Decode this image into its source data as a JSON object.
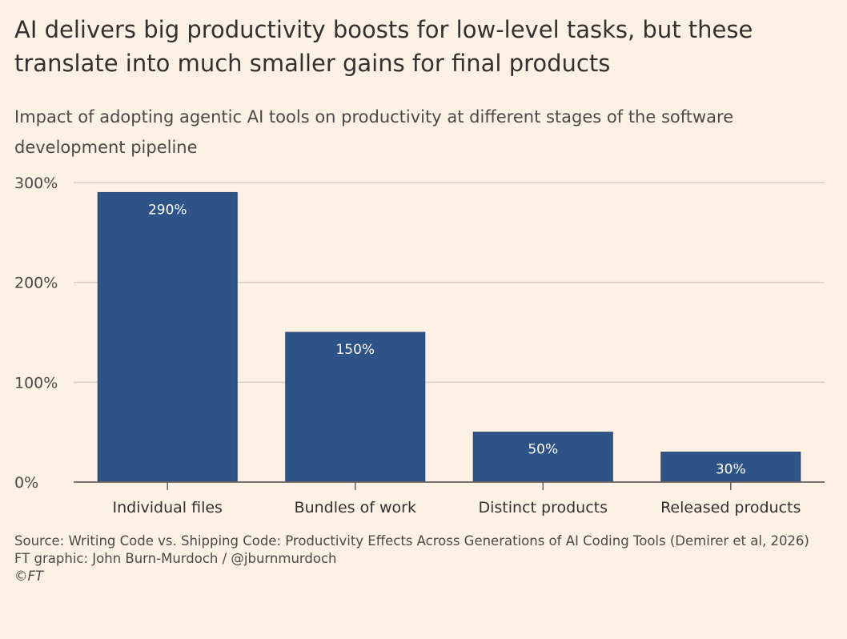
{
  "title": "AI delivers big productivity boosts for low-level tasks, but these translate into much smaller gains for final products",
  "subtitle": "Impact of adopting agentic AI tools on productivity at different stages of the software development pipeline",
  "footer": {
    "source": "Source: Writing Code vs. Shipping Code: Productivity Effects Across Generations of AI Coding Tools (Demirer et al, 2026)",
    "credit": "FT graphic: John Burn-Murdoch / @jburnmurdoch",
    "copyright": "©FT"
  },
  "colors": {
    "background": "#fdf1e6",
    "bar": "#2e5386",
    "gridline": "#d9cdc1",
    "axis": "#66605c"
  },
  "chart_data": {
    "type": "bar",
    "categories": [
      "Individual files",
      "Bundles of work",
      "Distinct products",
      "Released products"
    ],
    "values": [
      290,
      150,
      50,
      30
    ],
    "data_labels": [
      "290%",
      "150%",
      "50%",
      "30%"
    ],
    "ylim": [
      0,
      300
    ],
    "yticks": [
      0,
      100,
      200,
      300
    ],
    "ytick_labels": [
      "0%",
      "100%",
      "200%",
      "300%"
    ],
    "grid": true,
    "legend": "none"
  }
}
